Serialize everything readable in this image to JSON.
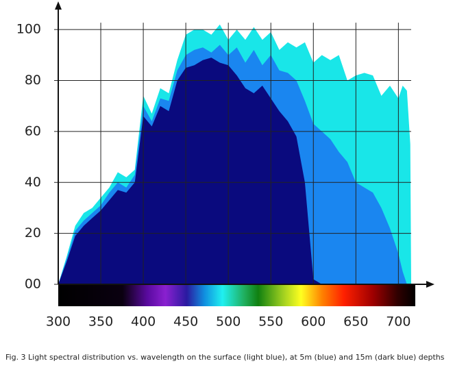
{
  "chart_data": {
    "type": "area",
    "caption": "Fig. 3 Light spectral distribution vs. wavelength on the surface (light blue), at 5m (blue) and 15m (dark blue) depths",
    "x": [
      300,
      310,
      320,
      330,
      340,
      350,
      360,
      370,
      380,
      390,
      400,
      410,
      420,
      430,
      440,
      450,
      460,
      470,
      480,
      490,
      500,
      510,
      520,
      530,
      540,
      550,
      560,
      570,
      580,
      590,
      600,
      610,
      620,
      630,
      640,
      650,
      660,
      670,
      680,
      690,
      700,
      705,
      710,
      714,
      715
    ],
    "series": [
      {
        "color": "#19e6e8",
        "values": [
          0,
          11,
          23,
          28,
          30,
          34,
          38,
          44,
          42,
          45,
          74,
          67,
          77,
          75,
          88,
          98,
          100,
          100,
          98,
          102,
          96,
          100,
          96,
          101,
          96,
          99,
          92,
          95,
          93,
          95,
          87,
          90,
          88,
          90,
          80,
          82,
          83,
          82,
          74,
          78,
          73,
          78,
          76,
          55,
          0
        ]
      },
      {
        "color": "#1a86f0",
        "values": [
          0,
          10,
          21,
          25,
          28,
          31,
          36,
          40,
          38,
          43,
          70,
          64,
          73,
          72,
          84,
          90,
          92,
          93,
          91,
          94,
          90,
          93,
          87,
          92,
          86,
          90,
          84,
          83,
          80,
          72,
          63,
          60,
          57,
          52,
          48,
          40,
          38,
          36,
          30,
          22,
          12,
          5,
          0,
          0,
          0
        ]
      },
      {
        "color": "#0a0a7e",
        "values": [
          0,
          9,
          19,
          23,
          26,
          29,
          33,
          37,
          36,
          40,
          66,
          62,
          70,
          68,
          80,
          85,
          86,
          88,
          89,
          87,
          86,
          82,
          77,
          75,
          78,
          73,
          68,
          64,
          58,
          40,
          2,
          0,
          0,
          0,
          0,
          0,
          0,
          0,
          0,
          0,
          0,
          0,
          0,
          0,
          0
        ]
      }
    ],
    "xlim": [
      300,
      740
    ],
    "ylim": [
      0,
      110
    ],
    "xticks": [
      300,
      350,
      400,
      450,
      500,
      550,
      600,
      650,
      700
    ],
    "yticks": [
      {
        "value": 0,
        "label": "00"
      },
      20,
      40,
      60,
      80,
      100
    ],
    "grid": true
  }
}
